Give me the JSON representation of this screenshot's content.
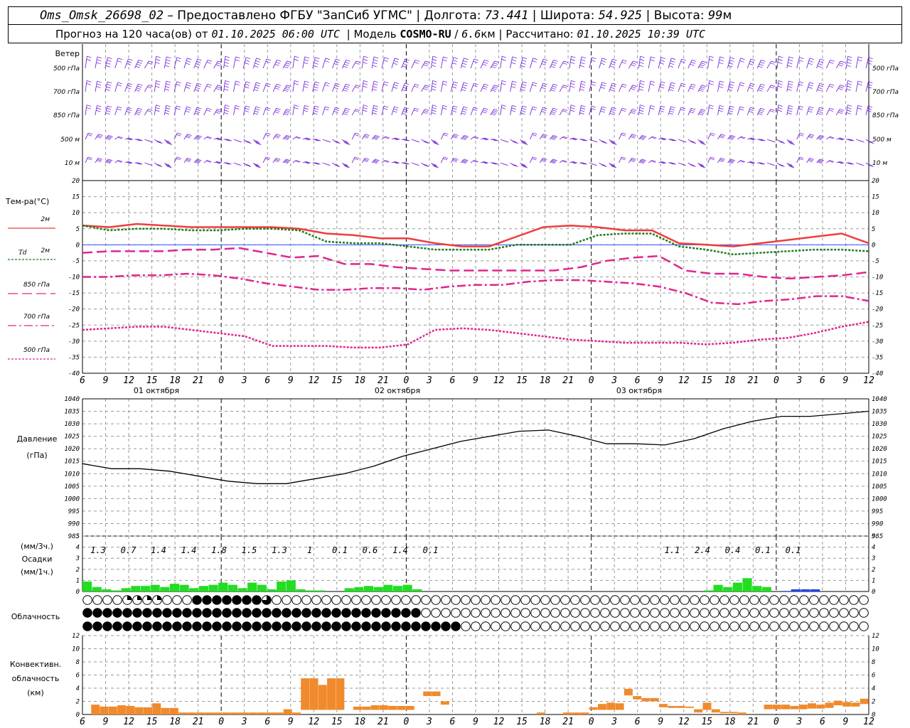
{
  "header": {
    "station": "Oms_Omsk_26698_02",
    "provider": "– Предоставлено ФГБУ \"ЗапСиб УГМС\"",
    "lon_label": "Долгота:",
    "lon_value": "73.441",
    "lat_label": "Широта:",
    "lat_value": "54.925",
    "alt_label": "Высота:",
    "alt_value": "99",
    "alt_unit": "м",
    "forecast_label": "Прогноз на 120 часа(ов) от",
    "forecast_time": "01.10.2025 06:00 UTC",
    "model_label": "Модель",
    "model_name": "COSMO-RU",
    "model_res": "6.6",
    "model_res_unit": "км",
    "calc_label": "Рассчитано:",
    "calc_time": "01.10.2025 10:39 UTC"
  },
  "panel_labels": {
    "wind": "Ветер",
    "wind_levels": [
      "500 гПа",
      "700 гПа",
      "850 гПа",
      "500 м",
      "10 м"
    ],
    "temp": "Тем-ра(°C)",
    "temp_2m": "2м",
    "td_prefix": "Td",
    "td_2m": "2м",
    "t850": "850 гПа",
    "t700": "700 гПа",
    "t500": "500 гПа",
    "pressure": "Давление",
    "pressure_unit": "(гПа)",
    "precip_3h": "(мм/3ч.)",
    "precip": "Осадки",
    "precip_1h": "(мм/1ч.)",
    "cloud": "Облачность",
    "conv1": "Конвективн.",
    "conv2": "облачность",
    "conv3": "(км)"
  },
  "colors": {
    "wind_barb": "#7a2bd9",
    "t2m": "#f03c3c",
    "td2m": "#1e7a1e",
    "t850": "#e0258f",
    "t700": "#e0258f",
    "t500": "#e0258f",
    "zero_line": "#3050ff",
    "pressure": "#000000",
    "rain_bar": "#22dd22",
    "snow_bar": "#2244ee",
    "conv_bar": "#f08a2c"
  },
  "chart_data": {
    "type": "line",
    "x_hours_utc": [
      6,
      9,
      12,
      15,
      18,
      21,
      0,
      3,
      6,
      9,
      12,
      15,
      18,
      21,
      0,
      3,
      6,
      9,
      12,
      15,
      18,
      21,
      0,
      3,
      6,
      9,
      12,
      15,
      18,
      21,
      0,
      3,
      6,
      9,
      12
    ],
    "x_tick_labels": [
      "6",
      "9",
      "12",
      "15",
      "18",
      "21",
      "0",
      "3",
      "6",
      "9",
      "12",
      "15",
      "18",
      "21",
      "0",
      "3",
      "6",
      "9",
      "12",
      "15",
      "18",
      "21",
      "0",
      "3",
      "6",
      "9",
      "12",
      "15",
      "18",
      "21",
      "0",
      "3",
      "6",
      "9",
      "12"
    ],
    "date_labels": [
      "01 октября",
      "02 октября",
      "03 октября"
    ],
    "temperature": {
      "ylim": [
        -40,
        20
      ],
      "yticks": [
        -40,
        -35,
        -30,
        -25,
        -20,
        -15,
        -10,
        -5,
        0,
        5,
        10,
        15,
        20
      ],
      "series": [
        {
          "name": "2м",
          "style": "solid",
          "values": [
            6,
            5.5,
            6.5,
            6,
            5.5,
            5.5,
            5.5,
            5.5,
            5,
            3.5,
            3,
            2,
            2,
            0.5,
            -0.5,
            -0.5,
            2.5,
            5.5,
            6,
            5.5,
            4.5,
            4.5,
            0.5,
            0,
            -0.5,
            0.5,
            1.5,
            2.5,
            3.5,
            0.5
          ]
        },
        {
          "name": "Td 2м",
          "style": "dotted",
          "values": [
            6,
            4.5,
            5,
            5,
            4.5,
            4.5,
            5,
            5,
            4.5,
            1,
            0.5,
            0.5,
            -0.5,
            -1.5,
            -1.5,
            -1.5,
            0,
            0,
            0,
            3,
            3.5,
            3.5,
            -0.5,
            -1.5,
            -3,
            -2.5,
            -2,
            -1.5,
            -1.5,
            -2
          ]
        },
        {
          "name": "850 гПа",
          "style": "dash",
          "values": [
            -2.5,
            -2,
            -2,
            -2,
            -1.5,
            -1.5,
            -1,
            -2.5,
            -4,
            -3.5,
            -6,
            -6,
            -7,
            -7.5,
            -8,
            -8,
            -8,
            -8,
            -8,
            -7,
            -5,
            -4,
            -3.5,
            -8,
            -9,
            -9,
            -10,
            -10.5,
            -10,
            -9.5,
            -8.5
          ]
        },
        {
          "name": "700 гПа",
          "style": "dashdot",
          "values": [
            -10,
            -10,
            -9.5,
            -9.5,
            -9,
            -9.5,
            -10.5,
            -12,
            -13,
            -14,
            -14,
            -13.5,
            -13.5,
            -14,
            -13,
            -12.5,
            -12.5,
            -11.5,
            -11,
            -11,
            -11.5,
            -12,
            -13,
            -15,
            -18,
            -18.5,
            -17.5,
            -17,
            -16,
            -16,
            -17.5
          ]
        },
        {
          "name": "500 гПа",
          "style": "dotted",
          "values": [
            -26.5,
            -26,
            -25.5,
            -25.5,
            -26.5,
            -27.5,
            -28.5,
            -31.5,
            -31.5,
            -31.5,
            -32,
            -32,
            -31,
            -26.5,
            -26,
            -26.5,
            -27.5,
            -28.5,
            -29.5,
            -30,
            -30.5,
            -30.5,
            -30.5,
            -31,
            -30.5,
            -29.5,
            -29,
            -27.5,
            -25.5,
            -24
          ]
        }
      ]
    },
    "pressure": {
      "ylim": [
        985,
        1040
      ],
      "yticks": [
        985,
        990,
        995,
        1000,
        1005,
        1010,
        1015,
        1020,
        1025,
        1030,
        1035,
        1040
      ],
      "values": [
        1014,
        1012,
        1012,
        1011,
        1009,
        1007,
        1006,
        1006,
        1008,
        1010,
        1013,
        1017,
        1020,
        1023,
        1025,
        1027,
        1027.5,
        1025,
        1022,
        1022,
        1021.5,
        1024,
        1028,
        1031,
        1033,
        1033,
        1034,
        1035
      ]
    },
    "precipitation": {
      "ylim": [
        0,
        5
      ],
      "yticks": [
        0,
        1,
        2,
        3,
        4,
        5
      ],
      "totals_3h_labels": [
        "1.3",
        "0.7",
        "1.4",
        "1.4",
        "1.8",
        "1.5",
        "1.3",
        "1",
        "0.1",
        "0.6",
        "1.4",
        "0.1",
        "",
        "",
        "",
        "",
        "",
        "",
        "",
        "1.1",
        "2.4",
        "0.4",
        "0.1",
        "0.1"
      ],
      "rain_1h": [
        0.9,
        0.4,
        0.2,
        0.1,
        0.3,
        0.5,
        0.5,
        0.6,
        0.4,
        0.7,
        0.6,
        0.3,
        0.5,
        0.6,
        0.8,
        0.6,
        0.3,
        0.8,
        0.6,
        0.2,
        0.9,
        1.0,
        0.2,
        0.1,
        0.1,
        0,
        0,
        0.3,
        0.4,
        0.5,
        0.4,
        0.6,
        0.5,
        0.6,
        0.2,
        0,
        0,
        0,
        0,
        0,
        0,
        0,
        0,
        0,
        0,
        0,
        0,
        0,
        0,
        0,
        0,
        0,
        0,
        0,
        0,
        0,
        0,
        0,
        0,
        0,
        0,
        0,
        0,
        0,
        0.1,
        0.6,
        0.4,
        0.8,
        1.2,
        0.5,
        0.4,
        0,
        0,
        0,
        0,
        0,
        0,
        0,
        0,
        0,
        0
      ],
      "snow_1h": [
        0,
        0,
        0,
        0,
        0,
        0,
        0,
        0,
        0,
        0,
        0,
        0,
        0,
        0,
        0,
        0,
        0,
        0,
        0,
        0,
        0,
        0,
        0,
        0,
        0,
        0,
        0,
        0,
        0,
        0,
        0,
        0,
        0,
        0,
        0,
        0,
        0,
        0,
        0,
        0,
        0,
        0,
        0,
        0,
        0,
        0,
        0,
        0,
        0,
        0,
        0,
        0,
        0,
        0,
        0,
        0,
        0,
        0,
        0,
        0,
        0,
        0,
        0,
        0,
        0,
        0,
        0,
        0,
        0,
        0,
        0,
        0,
        0.05,
        0.2,
        0.2,
        0.2,
        0,
        0,
        0,
        0,
        0,
        0
      ]
    },
    "cloudiness": {
      "levels": [
        "high",
        "mid",
        "low"
      ],
      "high": "0000222200088888886000000000000000000000000000000000000000000000000000000000000",
      "mid": "8888888888888888888888888888888888000000000000000000000000000000000000000000000",
      "low": "8888888888888888888888888888888888888800000000000000000000000000000000000000000"
    },
    "convective": {
      "ylim": [
        0,
        12
      ],
      "yticks": [
        0,
        2,
        4,
        6,
        8,
        10,
        12
      ],
      "tops_km": [
        0,
        1.5,
        1.2,
        1.2,
        1.4,
        1.3,
        1.1,
        1.1,
        1.7,
        1.0,
        1.0,
        0.3,
        0.3,
        0.3,
        0.3,
        0.3,
        0.3,
        0.3,
        0.3,
        0.3,
        0.3,
        0.3,
        0.3,
        0.8,
        0.3,
        5.5,
        5.5,
        4.5,
        5.5,
        5.5,
        0,
        1.2,
        1.2,
        1.4,
        1.4,
        1.3,
        1.3,
        1.3,
        0,
        3.5,
        3.5,
        2.0,
        0,
        0,
        0,
        0,
        0,
        0,
        0,
        0,
        0,
        0,
        0.3,
        0,
        0,
        0.3,
        0.3,
        0.3,
        1.1,
        1.6,
        1.8,
        1.7,
        3.9,
        2.8,
        2.5,
        2.5,
        1.6,
        1.3,
        1.3,
        1.2,
        0.8,
        1.8,
        0.8,
        0.4,
        0.4,
        0.3,
        0,
        0,
        1.5,
        1.5,
        1.5,
        1.3,
        1.5,
        1.7,
        1.5,
        1.8,
        2.1,
        1.9,
        1.8,
        2.4
      ],
      "bases_km": [
        0,
        0,
        0,
        0,
        0,
        0,
        0,
        0,
        0,
        0,
        0,
        0,
        0,
        0,
        0,
        0,
        0,
        0,
        0,
        0,
        0,
        0,
        0,
        0,
        0,
        0.7,
        0.7,
        0.7,
        0.7,
        0.7,
        0,
        0.7,
        0.7,
        0.7,
        0.7,
        0.7,
        0.7,
        0.7,
        0,
        2.8,
        2.8,
        1.5,
        0,
        0,
        0,
        0,
        0,
        0,
        0,
        0,
        0,
        0,
        0,
        0,
        0,
        0,
        0,
        0,
        0.7,
        0.7,
        0.7,
        0.7,
        2.9,
        2.3,
        2.0,
        2.0,
        1.1,
        1.0,
        1.0,
        1.0,
        0.3,
        0.7,
        0.3,
        0.2,
        0.2,
        0,
        0,
        0,
        0.8,
        0.8,
        0.8,
        0.8,
        0.8,
        0.9,
        0.9,
        1.0,
        1.4,
        1.2,
        1.2,
        1.6
      ]
    }
  }
}
